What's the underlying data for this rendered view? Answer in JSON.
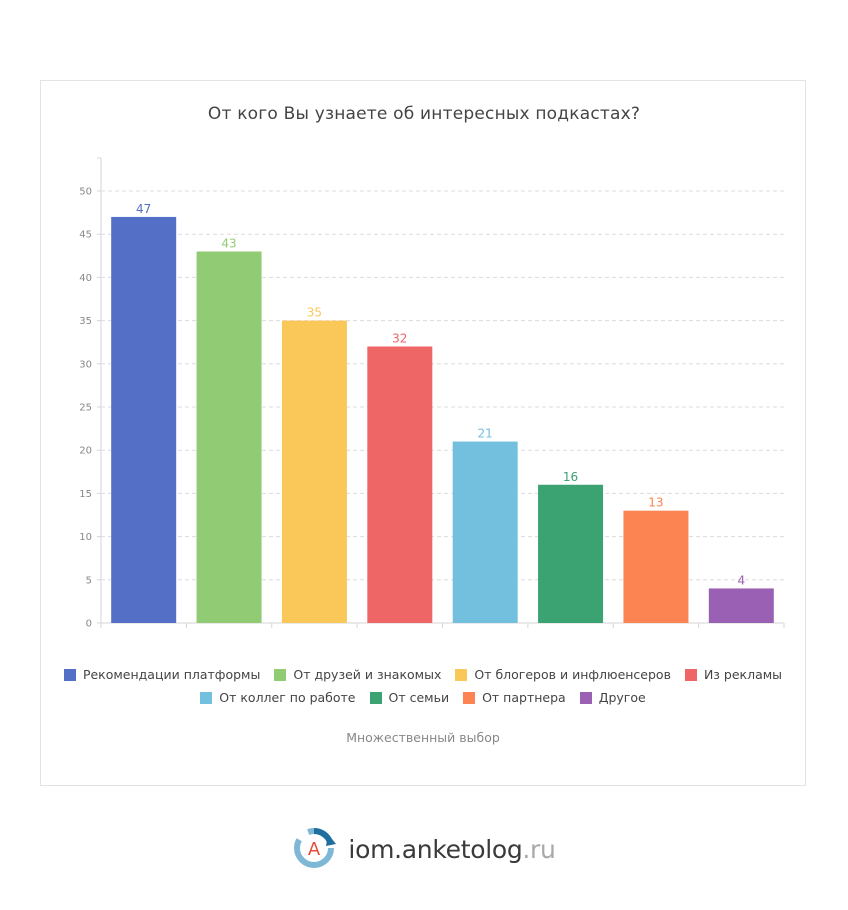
{
  "chart_data": {
    "type": "bar",
    "title": "От кого Вы узнаете об интересных подкастах?",
    "categories": [
      "Рекомендации платформы",
      "От друзей и знакомых",
      "От блогеров и инфлюенсеров",
      "Из рекламы",
      "От коллег по работе",
      "От семьи",
      "От партнера",
      "Другое"
    ],
    "values": [
      47,
      43,
      35,
      32,
      21,
      16,
      13,
      4
    ],
    "colors": [
      "#5470c6",
      "#91cc75",
      "#fac858",
      "#ee6666",
      "#73c0de",
      "#3ba272",
      "#fc8452",
      "#9a60b4"
    ],
    "ylim": [
      0,
      50
    ],
    "yticks": [
      0,
      5,
      10,
      15,
      20,
      25,
      30,
      35,
      40,
      45,
      50
    ],
    "grid": true,
    "legend_position": "bottom",
    "footnote": "Множественный выбор"
  },
  "brand": {
    "logo_letter": "A",
    "name": "iom.anketolog",
    "tld": ".ru"
  }
}
